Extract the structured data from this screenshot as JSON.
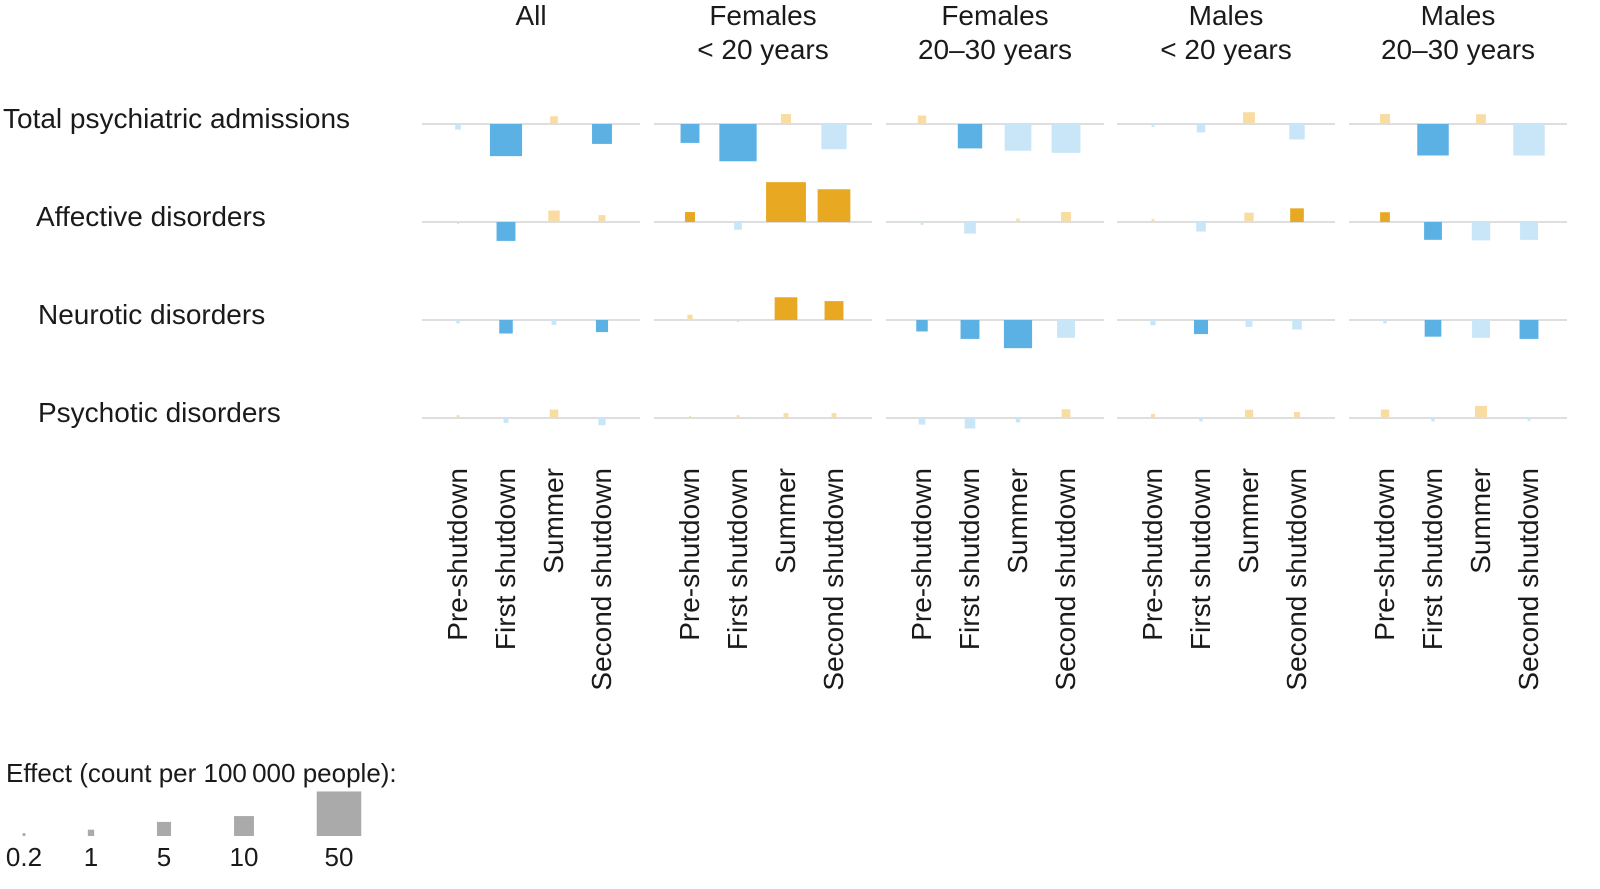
{
  "chart_data": {
    "type": "bar",
    "description_sign": "positive effects drawn above baseline (orange), negative below (blue); faded bars are non-significant",
    "panels": [
      "All",
      "Females\n< 20 years",
      "Females\n20–30 years",
      "Males\n< 20 years",
      "Males\n20–30 years"
    ],
    "rows": [
      "Total psychiatric admissions",
      "Affective disorders",
      "Neurotic disorders",
      "Psychotic disorders"
    ],
    "periods": [
      "Pre-shutdown",
      "First shutdown",
      "Summer",
      "Second shutdown"
    ],
    "unit": "count per 100 000 people",
    "effects": [
      [
        [
          [
            -0.8,
            false
          ],
          [
            -26,
            true
          ],
          [
            1.5,
            false
          ],
          [
            -10,
            true
          ]
        ],
        [
          [
            -9,
            true
          ],
          [
            -35,
            true
          ],
          [
            2.5,
            false
          ],
          [
            -16,
            false
          ]
        ],
        [
          [
            1.8,
            false
          ],
          [
            -15,
            true
          ],
          [
            -18,
            false
          ],
          [
            -21,
            false
          ]
        ],
        [
          [
            -0.2,
            false
          ],
          [
            -1.8,
            false
          ],
          [
            3.5,
            false
          ],
          [
            -6,
            false
          ]
        ],
        [
          [
            2.5,
            false
          ],
          [
            -25,
            true
          ],
          [
            2.4,
            false
          ],
          [
            -25,
            false
          ]
        ]
      ],
      [
        [
          [
            -0.1,
            false
          ],
          [
            -9,
            true
          ],
          [
            3.3,
            false
          ],
          [
            1.2,
            false
          ]
        ],
        [
          [
            2.5,
            true
          ],
          [
            -1.5,
            false
          ],
          [
            40,
            true
          ],
          [
            27,
            true
          ]
        ],
        [
          [
            -0.2,
            false
          ],
          [
            -3.4,
            false
          ],
          [
            0.3,
            false
          ],
          [
            2.5,
            false
          ]
        ],
        [
          [
            0.2,
            false
          ],
          [
            -2.3,
            false
          ],
          [
            2.2,
            false
          ],
          [
            4.7,
            true
          ]
        ],
        [
          [
            2.4,
            true
          ],
          [
            -8,
            true
          ],
          [
            -8.5,
            false
          ],
          [
            -8,
            false
          ]
        ]
      ],
      [
        [
          [
            -0.3,
            false
          ],
          [
            -4.6,
            true
          ],
          [
            -0.6,
            false
          ],
          [
            -3.7,
            true
          ]
        ],
        [
          [
            0.7,
            false
          ],
          [
            -0.05,
            false
          ],
          [
            13,
            true
          ],
          [
            9,
            true
          ]
        ],
        [
          [
            -3.3,
            true
          ],
          [
            -9,
            true
          ],
          [
            -20,
            true
          ],
          [
            -8,
            false
          ]
        ],
        [
          [
            -0.7,
            false
          ],
          [
            -5,
            true
          ],
          [
            -1.2,
            false
          ],
          [
            -2.3,
            false
          ]
        ],
        [
          [
            -0.3,
            false
          ],
          [
            -7,
            true
          ],
          [
            -8,
            false
          ],
          [
            -9,
            true
          ]
        ]
      ],
      [
        [
          [
            0.2,
            false
          ],
          [
            -0.6,
            false
          ],
          [
            1.8,
            false
          ],
          [
            -1.3,
            false
          ]
        ],
        [
          [
            0.1,
            false
          ],
          [
            0.2,
            false
          ],
          [
            0.6,
            false
          ],
          [
            0.6,
            false
          ]
        ],
        [
          [
            -1.1,
            false
          ],
          [
            -2.8,
            false
          ],
          [
            -0.5,
            false
          ],
          [
            1.9,
            false
          ]
        ],
        [
          [
            0.4,
            false
          ],
          [
            -0.3,
            false
          ],
          [
            1.7,
            false
          ],
          [
            0.9,
            false
          ]
        ],
        [
          [
            1.8,
            false
          ],
          [
            -0.3,
            false
          ],
          [
            3.7,
            false
          ],
          [
            -0.2,
            false
          ]
        ]
      ]
    ],
    "legend": {
      "title": "Effect (count per 100 000 people):",
      "values": [
        0.2,
        1,
        5,
        10,
        50
      ],
      "labels": [
        "0.2",
        "1",
        "5",
        "10",
        "50"
      ]
    }
  },
  "colors": {
    "positive": "#e8a822",
    "positive_faded": "#f8dca2",
    "negative": "#5bb1e3",
    "negative_faded": "#c8e6f7",
    "baseline": "#d3d3d3",
    "legend": "#aaaaaa",
    "text": "#1a1a1a"
  }
}
